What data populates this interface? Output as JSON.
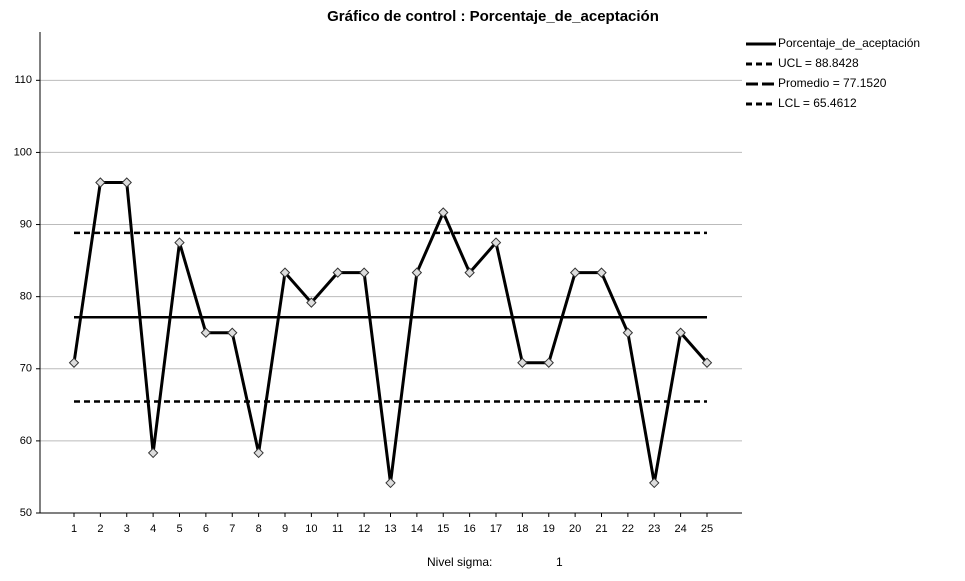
{
  "chart_data": {
    "type": "line",
    "title": "Gráfico de control : Porcentaje_de_aceptación",
    "categories": [
      "1",
      "2",
      "3",
      "4",
      "5",
      "6",
      "7",
      "8",
      "9",
      "10",
      "11",
      "12",
      "13",
      "14",
      "15",
      "16",
      "17",
      "18",
      "19",
      "20",
      "21",
      "22",
      "23",
      "24",
      "25"
    ],
    "series": [
      {
        "name": "Porcentaje_de_aceptación",
        "color": "#000000",
        "values": [
          70.83,
          95.83,
          95.83,
          58.33,
          87.5,
          75,
          75,
          58.33,
          83.33,
          79.17,
          83.33,
          83.33,
          54.17,
          83.33,
          91.67,
          83.33,
          87.5,
          70.83,
          70.83,
          83.33,
          83.33,
          75,
          54.17,
          75,
          70.83
        ]
      }
    ],
    "limits": [
      {
        "name": "UCL = 88.8428",
        "value": 88.8428,
        "style": "dashed"
      },
      {
        "name": "Promedio = 77.1520",
        "value": 77.152,
        "style": "solid"
      },
      {
        "name": "LCL = 65.4612",
        "value": 65.4612,
        "style": "dashed"
      }
    ],
    "ylim": [
      50,
      116.7
    ],
    "yticks": [
      50,
      60,
      70,
      80,
      90,
      100,
      110
    ],
    "grid": true,
    "footer": {
      "label": "Nivel sigma:",
      "value": "1"
    }
  }
}
